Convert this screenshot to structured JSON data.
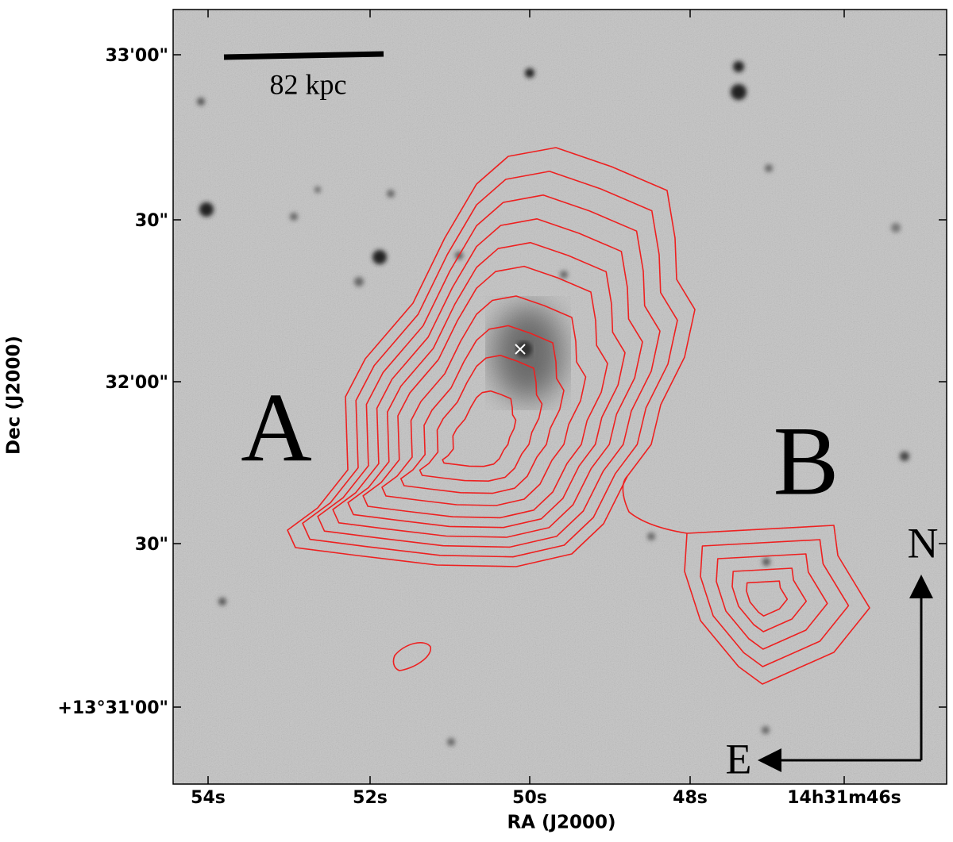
{
  "figure": {
    "x_label": "RA (J2000)",
    "y_label": "Dec (J2000)",
    "x_ticks": [
      "54s",
      "52s",
      "50s",
      "48s",
      "14h31m46s"
    ],
    "y_ticks": [
      "33'00\"",
      "30\"",
      "32'00\"",
      "30\"",
      "+13°31'00\""
    ],
    "scale_bar": "82 kpc",
    "regions": [
      "A",
      "B"
    ],
    "compass": {
      "north": "N",
      "east": "E"
    }
  }
}
